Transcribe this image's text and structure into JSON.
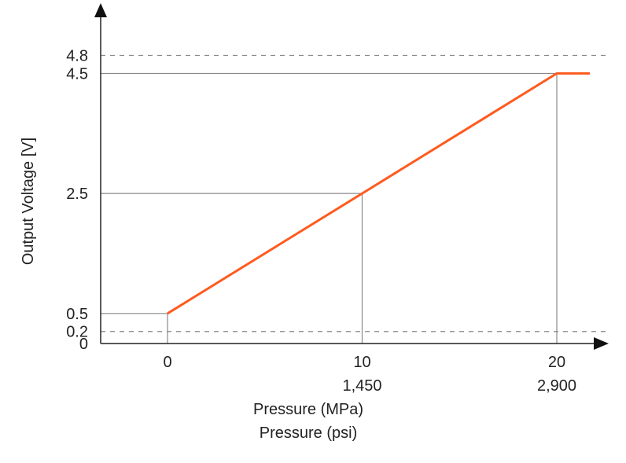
{
  "chart_data": {
    "type": "line",
    "xlabel": "Pressure (MPa)",
    "xlabel2": "Pressure (psi)",
    "ylabel": "Output Voltage [V]",
    "xlim": [
      -3.5,
      21.7
    ],
    "ylim": [
      0,
      4.8
    ],
    "x_ticks": [
      0,
      10,
      20
    ],
    "x_tick_labels": [
      "0",
      "10",
      "20"
    ],
    "x_tick_labels_psi": [
      "",
      "1,450",
      "2,900"
    ],
    "y_ticks": [
      0,
      0.2,
      0.5,
      2.5,
      4.5,
      4.8
    ],
    "y_tick_labels": [
      "0",
      "0.2",
      "0.5",
      "2.5",
      "4.5",
      "4.8"
    ],
    "dashed_reference_lines_y": [
      0.2,
      4.8
    ],
    "solid_reference_lines_y": [
      0.5,
      2.5,
      4.5
    ],
    "solid_reference_lines_x": [
      0,
      10,
      20
    ],
    "series": [
      {
        "color": "#ff5a1e",
        "x": [
          0,
          10,
          20,
          21.7
        ],
        "y": [
          0.5,
          2.5,
          4.5,
          4.5
        ]
      }
    ],
    "grid": false,
    "legend": "none"
  }
}
